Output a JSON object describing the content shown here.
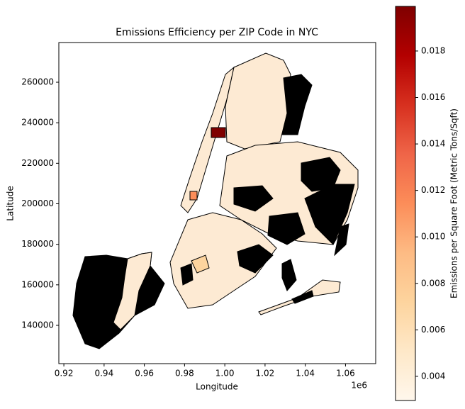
{
  "chart_data": {
    "type": "choropleth",
    "title": "Emissions Efficiency per ZIP Code in NYC",
    "x_label": "Longitude",
    "y_label": "Latitude",
    "x_offset_label": "1e6",
    "xlim": [
      0.9175,
      1.075
    ],
    "ylim": [
      121100,
      279600
    ],
    "xticks": [
      0.92,
      0.94,
      0.96,
      0.98,
      {
        "value": 1,
        "label": "1.00"
      },
      1.02,
      1.04,
      1.06
    ],
    "yticks": [
      140000,
      160000,
      180000,
      200000,
      220000,
      240000,
      260000
    ],
    "colorbar": {
      "label": "Emissions per Square Foot (Metric Tons/Sqft)",
      "lim": [
        0.00296,
        0.01992
      ],
      "ticks": [
        0.004,
        0.006,
        0.008,
        {
          "value": 0.01,
          "label": "0.010"
        },
        0.012,
        0.014,
        0.016,
        0.018
      ],
      "colormap": [
        "#fff7ec",
        "#fee8c8",
        "#fdd49e",
        "#fdbb84",
        "#fc8d59",
        "#ef6548",
        "#d7301f",
        "#b30000",
        "#7f0000"
      ]
    }
  }
}
